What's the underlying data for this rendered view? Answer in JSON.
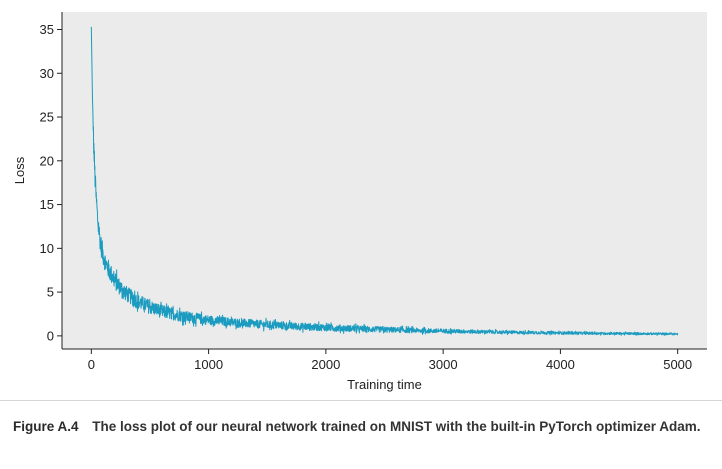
{
  "chart_data": {
    "type": "line",
    "xlabel": "Training time",
    "ylabel": "Loss",
    "xlim": [
      -250,
      5250
    ],
    "ylim": [
      -1.5,
      37
    ],
    "xticks": [
      0,
      1000,
      2000,
      3000,
      4000,
      5000
    ],
    "yticks": [
      0,
      5,
      10,
      15,
      20,
      25,
      30,
      35
    ],
    "grid": false,
    "background_color": "#ebebeb",
    "series": [
      {
        "color": "#1a9bbf",
        "x": [
          0,
          10,
          20,
          30,
          40,
          50,
          60,
          70,
          80,
          100,
          120,
          150,
          200,
          250,
          300,
          400,
          500,
          600,
          700,
          800,
          900,
          1000,
          1200,
          1400,
          1600,
          1800,
          2000,
          2200,
          2400,
          2600,
          2800,
          3000,
          3200,
          3400,
          3600,
          3800,
          4000,
          4200,
          4400,
          4600,
          4800,
          5000
        ],
        "y": [
          35.3,
          27,
          22,
          18.5,
          16,
          14,
          12.5,
          11.5,
          10.5,
          9.3,
          8.4,
          7.5,
          6.3,
          5.5,
          4.8,
          3.9,
          3.3,
          2.8,
          2.5,
          2.2,
          2.0,
          1.8,
          1.55,
          1.35,
          1.2,
          1.05,
          0.95,
          0.85,
          0.75,
          0.68,
          0.6,
          0.55,
          0.5,
          0.45,
          0.4,
          0.37,
          0.34,
          0.31,
          0.28,
          0.26,
          0.24,
          0.22
        ],
        "noise_amplitude": [
          0,
          0,
          1.5,
          1.4,
          1.3,
          1.2,
          1.2,
          1.2,
          1.2,
          1.2,
          1.1,
          1.1,
          1.0,
          0.95,
          0.9,
          0.85,
          0.8,
          0.75,
          0.7,
          0.65,
          0.6,
          0.55,
          0.5,
          0.48,
          0.45,
          0.42,
          0.4,
          0.37,
          0.34,
          0.31,
          0.28,
          0.25,
          0.22,
          0.2,
          0.18,
          0.17,
          0.16,
          0.15,
          0.14,
          0.13,
          0.12,
          0.12
        ]
      }
    ]
  },
  "caption": {
    "figure_number": "Figure A.4",
    "text": "The loss plot of our neural network trained on MNIST with the built-in PyTorch optimizer Adam."
  }
}
